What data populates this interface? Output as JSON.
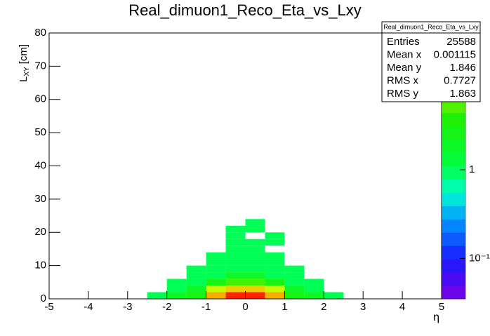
{
  "chart_data": {
    "type": "heatmap2d",
    "title": "Real_dimuon1_Reco_Eta_vs_Lxy",
    "xlabel": "η",
    "ylabel": {
      "main": "L",
      "sub": "XY",
      "unit": "[cm]"
    },
    "xlim": [
      -5,
      5
    ],
    "xticks": [
      -5,
      -4,
      -3,
      -2,
      -1,
      0,
      1,
      2,
      3,
      4,
      5
    ],
    "ylim": [
      0,
      80
    ],
    "yticks": [
      0,
      10,
      20,
      30,
      40,
      50,
      60,
      70,
      80
    ],
    "xbins": [
      -2.5,
      -2,
      -1.5,
      -1,
      -0.5,
      0,
      0.5,
      1,
      1.5,
      2,
      2.5
    ],
    "ybins": [
      0,
      2,
      4,
      6,
      8,
      10,
      12,
      14,
      16,
      18,
      20,
      22,
      24
    ],
    "z": [
      [
        1,
        2,
        3,
        15,
        30,
        30,
        15,
        3,
        2,
        1
      ],
      [
        0,
        1,
        2,
        8,
        12,
        12,
        8,
        2,
        1,
        0
      ],
      [
        0,
        1,
        1,
        3,
        5,
        5,
        3,
        1,
        1,
        0
      ],
      [
        0,
        0,
        1,
        1,
        2,
        2,
        1,
        1,
        0,
        0
      ],
      [
        0,
        0,
        1,
        1,
        1,
        1,
        1,
        1,
        0,
        0
      ],
      [
        0,
        0,
        0,
        1,
        1,
        1,
        1,
        0,
        0,
        0
      ],
      [
        0,
        0,
        0,
        1,
        1,
        1,
        1,
        0,
        0,
        0
      ],
      [
        0,
        0,
        0,
        0,
        1,
        1,
        0,
        0,
        0,
        0
      ],
      [
        0,
        0,
        0,
        0,
        1,
        1,
        1,
        0,
        0,
        0
      ],
      [
        0,
        0,
        0,
        0,
        1,
        0,
        1,
        0,
        0,
        0
      ],
      [
        0,
        0,
        0,
        0,
        1,
        1,
        0,
        0,
        0,
        0
      ],
      [
        0,
        0,
        0,
        0,
        0,
        1,
        0,
        0,
        0,
        0
      ]
    ],
    "zlim": [
      0.035,
      35
    ],
    "zlog": true,
    "zticks": [
      {
        "value": 0.1,
        "label": "10⁻¹"
      },
      1,
      10
    ],
    "palette": [
      [
        0,
        "#7a00e6"
      ],
      [
        0.15,
        "#1a1aff"
      ],
      [
        0.3,
        "#0099ff"
      ],
      [
        0.4,
        "#00ffd0"
      ],
      [
        0.5,
        "#00ff40"
      ],
      [
        0.7,
        "#22ee00"
      ],
      [
        0.8,
        "#ddff00"
      ],
      [
        0.9,
        "#ff9900"
      ],
      [
        1,
        "#ff0000"
      ]
    ],
    "stats": {
      "title": "Real_dimuon1_Reco_Eta_vs_Lxy",
      "rows": [
        [
          "Entries",
          "25588"
        ],
        [
          "Mean x",
          "0.001115"
        ],
        [
          "Mean y",
          "1.846"
        ],
        [
          "RMS x",
          "0.7727"
        ],
        [
          "RMS y",
          "1.863"
        ]
      ]
    }
  }
}
